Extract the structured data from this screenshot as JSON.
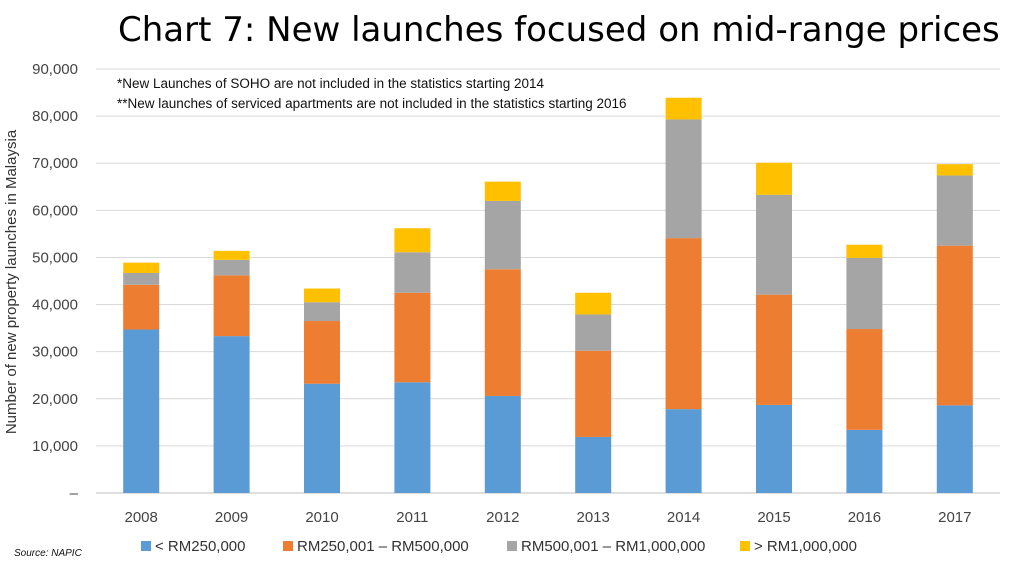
{
  "title": "Chart 7: New launches focused on mid-range prices",
  "source": "Source: NAPIC",
  "chart_data": {
    "type": "bar",
    "stacked": true,
    "categories": [
      "2008",
      "2009",
      "2010",
      "2011",
      "2012",
      "2013",
      "2014",
      "2015",
      "2016",
      "2017"
    ],
    "ylabel": "Number of new property launches in Malaysia",
    "xlabel": "",
    "ylim": [
      0,
      90000
    ],
    "yticks": [
      0,
      10000,
      20000,
      30000,
      40000,
      50000,
      60000,
      70000,
      80000,
      90000
    ],
    "ytick_labels": [
      "–",
      "10,000",
      "20,000",
      "30,000",
      "40,000",
      "50,000",
      "60,000",
      "70,000",
      "80,000",
      "90,000"
    ],
    "grid": true,
    "legend_position": "bottom",
    "series": [
      {
        "name": "< RM250,000",
        "color": "#5b9bd5",
        "values": [
          34700,
          33300,
          23200,
          23500,
          20600,
          11900,
          17800,
          18700,
          13400,
          18600
        ]
      },
      {
        "name": "RM250,001 – RM500,000",
        "color": "#ed7d31",
        "values": [
          9500,
          12900,
          13300,
          19000,
          26900,
          18300,
          36300,
          23400,
          21400,
          33900
        ]
      },
      {
        "name": "RM500,001 – RM1,000,000",
        "color": "#a5a5a5",
        "values": [
          2500,
          3300,
          4000,
          8600,
          14500,
          7700,
          25200,
          21200,
          15100,
          14900
        ]
      },
      {
        "name": "> RM1,000,000",
        "color": "#ffc000",
        "values": [
          2200,
          1900,
          2900,
          5100,
          4100,
          4600,
          4600,
          6800,
          2800,
          2400
        ]
      }
    ],
    "annotations": [
      "*New Launches of SOHO are not included in the statistics starting 2014",
      "**New launches of serviced apartments are not included in the statistics starting 2016"
    ]
  }
}
